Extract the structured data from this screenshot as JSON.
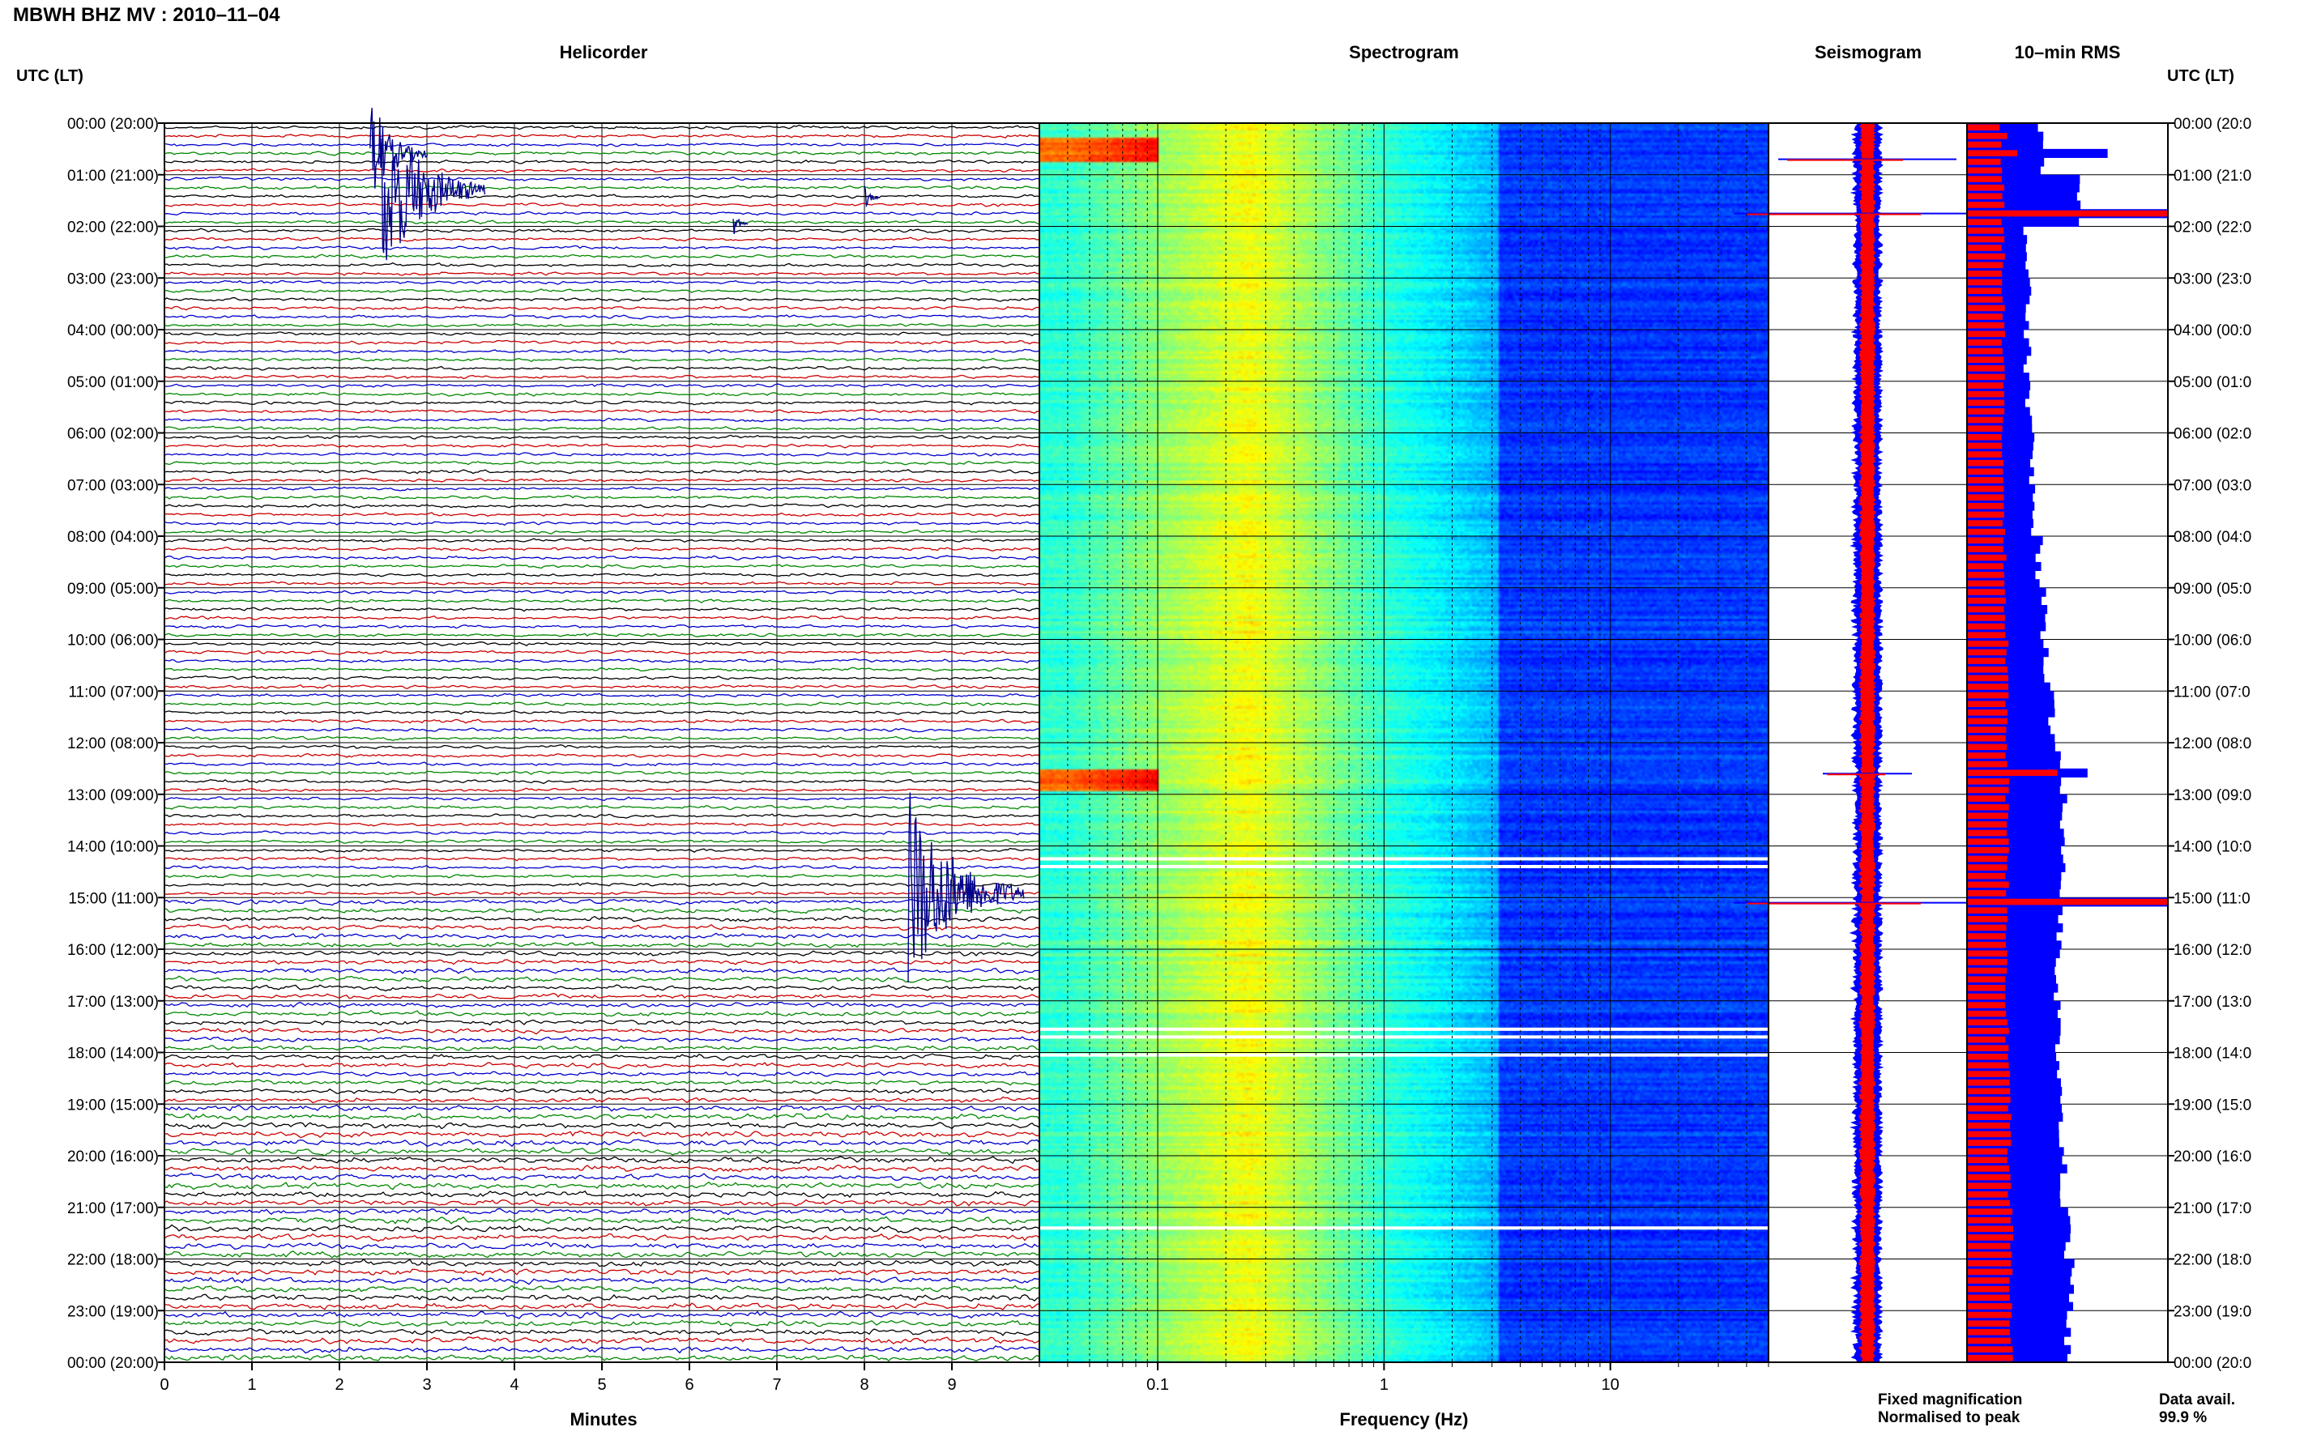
{
  "header": {
    "title": "MBWH BHZ MV : 2010–11–04"
  },
  "panels": {
    "helicorder": {
      "title": "Helicorder",
      "xlabel": "Minutes"
    },
    "spectrogram": {
      "title": "Spectrogram",
      "xlabel": "Frequency (Hz)"
    },
    "seismogram": {
      "title": "Seismogram"
    },
    "rms": {
      "title": "10–min RMS"
    }
  },
  "time_axis": {
    "label": "UTC (LT)",
    "tick_labels": [
      "00:00 (20:00)",
      "01:00 (21:00)",
      "02:00 (22:00)",
      "03:00 (23:00)",
      "04:00 (00:00)",
      "05:00 (01:00)",
      "06:00 (02:00)",
      "07:00 (03:00)",
      "08:00 (04:00)",
      "09:00 (05:00)",
      "10:00 (06:00)",
      "11:00 (07:00)",
      "12:00 (08:00)",
      "13:00 (09:00)",
      "14:00 (10:00)",
      "15:00 (11:00)",
      "16:00 (12:00)",
      "17:00 (13:00)",
      "18:00 (14:00)",
      "19:00 (15:00)",
      "20:00 (16:00)",
      "21:00 (17:00)",
      "22:00 (18:00)",
      "23:00 (19:00)",
      "00:00 (20:00)"
    ],
    "right_tick_labels": [
      "00:00 (20:0",
      "01:00 (21:0",
      "02:00 (22:0",
      "03:00 (23:0",
      "04:00 (00:0",
      "05:00 (01:0",
      "06:00 (02:0",
      "07:00 (03:0",
      "08:00 (04:0",
      "09:00 (05:0",
      "10:00 (06:0",
      "11:00 (07:0",
      "12:00 (08:0",
      "13:00 (09:0",
      "14:00 (10:0",
      "15:00 (11:0",
      "16:00 (12:0",
      "17:00 (13:0",
      "18:00 (14:0",
      "19:00 (15:0",
      "20:00 (16:0",
      "21:00 (17:0",
      "22:00 (18:0",
      "23:00 (19:0",
      "00:00 (20:0"
    ]
  },
  "legend": {
    "fixed": "Fixed magnification",
    "fixed_color": "#0000ff",
    "normalised": "Normalised to peak",
    "normalised_color": "#ff0000",
    "avail_label": "Data avail.",
    "avail_value": "99.9 %"
  },
  "chart_data": [
    {
      "type": "line",
      "name": "Helicorder",
      "xlim": [
        0,
        10
      ],
      "x_ticks": [
        0,
        1,
        2,
        3,
        4,
        5,
        6,
        7,
        8,
        9
      ],
      "x_tick_labels": [
        "0",
        "1",
        "2",
        "3",
        "4",
        "5",
        "6",
        "7",
        "8",
        "9"
      ],
      "rows": 144,
      "trace_colors": [
        "#000000",
        "#cc0000",
        "#0000cc",
        "#008800"
      ],
      "events": [
        {
          "hour": 0.6,
          "minute": 2.35,
          "amplitude": 1.2
        },
        {
          "hour": 1.3,
          "minute": 2.45,
          "amplitude": 2.2
        },
        {
          "hour": 1.95,
          "minute": 6.5,
          "amplitude": 0.3
        },
        {
          "hour": 1.45,
          "minute": 8.0,
          "amplitude": 0.3
        },
        {
          "hour": 14.9,
          "minute": 8.5,
          "amplitude": 2.4
        }
      ]
    },
    {
      "type": "heatmap",
      "name": "Spectrogram",
      "x_scale": "log",
      "xlim": [
        0.03,
        50
      ],
      "x_ticks": [
        0.1,
        1,
        10
      ],
      "x_tick_labels": [
        "0.1",
        "1",
        "10"
      ],
      "gaps_hours": [
        14.25,
        14.4,
        17.55,
        17.7,
        18.05,
        21.4
      ]
    },
    {
      "type": "line",
      "name": "Seismogram",
      "series": [
        {
          "name": "Fixed magnification",
          "color": "#0000ff"
        },
        {
          "name": "Normalised to peak",
          "color": "#ff0000"
        }
      ],
      "peaks": [
        {
          "hour": 0.7,
          "amplitude": 1.0
        },
        {
          "hour": 1.75,
          "amplitude": 1.5
        },
        {
          "hour": 12.6,
          "amplitude": 0.5
        },
        {
          "hour": 15.1,
          "amplitude": 1.5
        }
      ]
    },
    {
      "type": "bar",
      "name": "10-min RMS",
      "orientation": "horizontal",
      "hourly_blue": [
        0.37,
        0.55,
        0.3,
        0.3,
        0.3,
        0.31,
        0.32,
        0.33,
        0.36,
        0.38,
        0.4,
        0.42,
        0.45,
        0.48,
        0.47,
        0.46,
        0.45,
        0.45,
        0.46,
        0.47,
        0.48,
        0.5,
        0.52,
        0.5
      ],
      "hourly_red": [
        0.17,
        0.18,
        0.18,
        0.18,
        0.18,
        0.18,
        0.18,
        0.18,
        0.19,
        0.19,
        0.2,
        0.2,
        0.2,
        0.2,
        0.2,
        0.2,
        0.2,
        0.2,
        0.21,
        0.21,
        0.21,
        0.22,
        0.22,
        0.22
      ],
      "spikes": [
        {
          "hour": 0.25,
          "blue": 0.38,
          "red": 0.2
        },
        {
          "hour": 0.6,
          "blue": 0.7,
          "red": 0.25
        },
        {
          "hour": 1.75,
          "blue": 1.0,
          "red": 1.0
        },
        {
          "hour": 12.6,
          "blue": 0.6,
          "red": 0.45
        },
        {
          "hour": 15.1,
          "blue": 1.0,
          "red": 1.0
        }
      ]
    }
  ]
}
